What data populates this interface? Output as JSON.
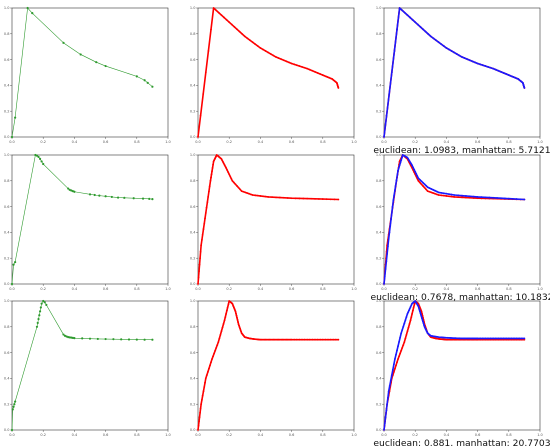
{
  "chart_data": [
    {
      "type": "line",
      "row": 0,
      "col": 0,
      "color": "#2e9a2e",
      "markers": "sparse",
      "xlim": [
        0,
        1
      ],
      "ylim": [
        0,
        1
      ],
      "xticks": [
        "0.0",
        "0.2",
        "0.4",
        "0.6",
        "0.8",
        "1.0"
      ],
      "yticks": [
        "0.0",
        "0.2",
        "0.4",
        "0.6",
        "0.8",
        "1.0"
      ],
      "x": [
        0.0,
        0.02,
        0.1,
        0.13,
        0.33,
        0.44,
        0.54,
        0.6,
        0.8,
        0.85,
        0.87,
        0.9
      ],
      "y": [
        0.0,
        0.15,
        1.0,
        0.96,
        0.73,
        0.64,
        0.58,
        0.55,
        0.47,
        0.44,
        0.42,
        0.39
      ]
    },
    {
      "type": "line",
      "row": 0,
      "col": 1,
      "color": "#ff0000",
      "markers": "dense",
      "xlim": [
        0,
        1
      ],
      "ylim": [
        0,
        1
      ],
      "xticks": [
        "0.0",
        "0.2",
        "0.4",
        "0.6",
        "0.8",
        "1.0"
      ],
      "yticks": [
        "0.0",
        "0.2",
        "0.4",
        "0.6",
        "0.8",
        "1.0"
      ],
      "x": [
        0.0,
        0.1,
        0.2,
        0.3,
        0.4,
        0.5,
        0.6,
        0.7,
        0.8,
        0.86,
        0.89,
        0.9
      ],
      "y": [
        0.0,
        1.0,
        0.89,
        0.78,
        0.69,
        0.62,
        0.57,
        0.53,
        0.48,
        0.45,
        0.42,
        0.38
      ]
    },
    {
      "type": "line",
      "row": 0,
      "col": 2,
      "markers": "dense",
      "xlim": [
        0,
        1
      ],
      "ylim": [
        0,
        1
      ],
      "xticks": [
        "0.0",
        "0.2",
        "0.4",
        "0.6",
        "0.8",
        "1.0"
      ],
      "yticks": [
        "0.0",
        "0.2",
        "0.4",
        "0.6",
        "0.8",
        "1.0"
      ],
      "series": [
        {
          "color": "#ff0000",
          "x": [
            0.0,
            0.1,
            0.2,
            0.3,
            0.4,
            0.5,
            0.6,
            0.7,
            0.8,
            0.86,
            0.89,
            0.9
          ],
          "y": [
            0.0,
            1.0,
            0.89,
            0.78,
            0.69,
            0.62,
            0.57,
            0.53,
            0.48,
            0.45,
            0.42,
            0.38
          ]
        },
        {
          "color": "#1a1aff",
          "x": [
            0.0,
            0.1,
            0.2,
            0.3,
            0.4,
            0.5,
            0.6,
            0.7,
            0.8,
            0.86,
            0.89,
            0.9
          ],
          "y": [
            0.0,
            1.0,
            0.89,
            0.78,
            0.69,
            0.62,
            0.57,
            0.53,
            0.48,
            0.45,
            0.42,
            0.38
          ]
        }
      ],
      "caption": "euclidean: 1.0983, manhattan: 5.7121"
    },
    {
      "type": "line",
      "row": 1,
      "col": 0,
      "color": "#2e9a2e",
      "markers": "sparse",
      "xlim": [
        0,
        1
      ],
      "ylim": [
        0,
        1
      ],
      "xticks": [
        "0.0",
        "0.2",
        "0.4",
        "0.6",
        "0.8",
        "1.0"
      ],
      "yticks": [
        "0.0",
        "0.2",
        "0.4",
        "0.6",
        "0.8",
        "1.0"
      ],
      "x": [
        0.0,
        0.01,
        0.02,
        0.15,
        0.16,
        0.17,
        0.18,
        0.19,
        0.2,
        0.36,
        0.37,
        0.38,
        0.39,
        0.4,
        0.5,
        0.53,
        0.56,
        0.6,
        0.64,
        0.68,
        0.72,
        0.78,
        0.84,
        0.88,
        0.9
      ],
      "y": [
        0.0,
        0.15,
        0.17,
        1.0,
        0.995,
        0.985,
        0.97,
        0.95,
        0.93,
        0.74,
        0.73,
        0.725,
        0.72,
        0.715,
        0.695,
        0.69,
        0.685,
        0.68,
        0.675,
        0.67,
        0.668,
        0.665,
        0.662,
        0.66,
        0.658
      ]
    },
    {
      "type": "line",
      "row": 1,
      "col": 1,
      "color": "#ff0000",
      "markers": "dense",
      "xlim": [
        0,
        1
      ],
      "ylim": [
        0,
        1
      ],
      "xticks": [
        "0.0",
        "0.2",
        "0.4",
        "0.6",
        "0.8",
        "1.0"
      ],
      "yticks": [
        "0.0",
        "0.2",
        "0.4",
        "0.6",
        "0.8",
        "1.0"
      ],
      "x": [
        0.0,
        0.02,
        0.05,
        0.08,
        0.1,
        0.12,
        0.15,
        0.18,
        0.22,
        0.28,
        0.35,
        0.45,
        0.6,
        0.75,
        0.9
      ],
      "y": [
        0.0,
        0.3,
        0.55,
        0.8,
        0.95,
        1.0,
        0.97,
        0.9,
        0.8,
        0.72,
        0.69,
        0.675,
        0.665,
        0.66,
        0.655
      ]
    },
    {
      "type": "line",
      "row": 1,
      "col": 2,
      "markers": "dense",
      "xlim": [
        0,
        1
      ],
      "ylim": [
        0,
        1
      ],
      "xticks": [
        "0.0",
        "0.2",
        "0.4",
        "0.6",
        "0.8",
        "1.0"
      ],
      "yticks": [
        "0.0",
        "0.2",
        "0.4",
        "0.6",
        "0.8",
        "1.0"
      ],
      "series": [
        {
          "color": "#ff0000",
          "x": [
            0.0,
            0.02,
            0.05,
            0.08,
            0.1,
            0.12,
            0.15,
            0.18,
            0.22,
            0.28,
            0.35,
            0.45,
            0.6,
            0.75,
            0.9
          ],
          "y": [
            0.0,
            0.3,
            0.55,
            0.8,
            0.95,
            1.0,
            0.97,
            0.9,
            0.8,
            0.72,
            0.69,
            0.675,
            0.665,
            0.66,
            0.655
          ]
        },
        {
          "color": "#1a1aff",
          "x": [
            0.0,
            0.03,
            0.06,
            0.09,
            0.12,
            0.15,
            0.18,
            0.22,
            0.28,
            0.35,
            0.45,
            0.6,
            0.75,
            0.9
          ],
          "y": [
            0.0,
            0.35,
            0.65,
            0.88,
            1.0,
            0.98,
            0.92,
            0.82,
            0.75,
            0.71,
            0.69,
            0.675,
            0.665,
            0.655
          ]
        }
      ],
      "caption": "euclidean: 0.7678, manhattan: 10.1832"
    },
    {
      "type": "line",
      "row": 2,
      "col": 0,
      "color": "#2e9a2e",
      "markers": "sparse",
      "xlim": [
        0,
        1
      ],
      "ylim": [
        0,
        1
      ],
      "xticks": [
        "0.0",
        "0.2",
        "0.4",
        "0.6",
        "0.8",
        "1.0"
      ],
      "yticks": [
        "0.0",
        "0.2",
        "0.4",
        "0.6",
        "0.8",
        "1.0"
      ],
      "x": [
        0.0,
        0.005,
        0.01,
        0.015,
        0.02,
        0.16,
        0.165,
        0.17,
        0.175,
        0.18,
        0.185,
        0.19,
        0.2,
        0.21,
        0.22,
        0.33,
        0.34,
        0.35,
        0.36,
        0.37,
        0.38,
        0.39,
        0.4,
        0.45,
        0.5,
        0.55,
        0.6,
        0.65,
        0.7,
        0.75,
        0.8,
        0.85,
        0.9
      ],
      "y": [
        0.0,
        0.16,
        0.18,
        0.2,
        0.22,
        0.8,
        0.83,
        0.86,
        0.89,
        0.92,
        0.95,
        0.98,
        1.0,
        0.99,
        0.97,
        0.74,
        0.73,
        0.725,
        0.72,
        0.718,
        0.716,
        0.714,
        0.712,
        0.71,
        0.708,
        0.706,
        0.705,
        0.704,
        0.703,
        0.702,
        0.701,
        0.7,
        0.7
      ]
    },
    {
      "type": "line",
      "row": 2,
      "col": 1,
      "color": "#ff0000",
      "markers": "dense",
      "xlim": [
        0,
        1
      ],
      "ylim": [
        0,
        1
      ],
      "xticks": [
        "0.0",
        "0.2",
        "0.4",
        "0.6",
        "0.8",
        "1.0"
      ],
      "yticks": [
        "0.0",
        "0.2",
        "0.4",
        "0.6",
        "0.8",
        "1.0"
      ],
      "x": [
        0.0,
        0.02,
        0.05,
        0.09,
        0.13,
        0.17,
        0.2,
        0.22,
        0.24,
        0.26,
        0.28,
        0.3,
        0.33,
        0.36,
        0.4,
        0.45,
        0.5,
        0.55,
        0.6,
        0.7,
        0.8,
        0.9
      ],
      "y": [
        0.0,
        0.2,
        0.4,
        0.55,
        0.68,
        0.85,
        1.0,
        0.98,
        0.92,
        0.82,
        0.75,
        0.72,
        0.71,
        0.705,
        0.7,
        0.7,
        0.7,
        0.7,
        0.7,
        0.7,
        0.7,
        0.7
      ]
    },
    {
      "type": "line",
      "row": 2,
      "col": 2,
      "markers": "dense",
      "xlim": [
        0,
        1
      ],
      "ylim": [
        0,
        1
      ],
      "xticks": [
        "0.0",
        "0.2",
        "0.4",
        "0.6",
        "0.8",
        "1.0"
      ],
      "yticks": [
        "0.0",
        "0.2",
        "0.4",
        "0.6",
        "0.8",
        "1.0"
      ],
      "series": [
        {
          "color": "#ff0000",
          "x": [
            0.0,
            0.02,
            0.05,
            0.09,
            0.13,
            0.17,
            0.2,
            0.22,
            0.24,
            0.26,
            0.28,
            0.3,
            0.33,
            0.36,
            0.4,
            0.45,
            0.5,
            0.55,
            0.6,
            0.7,
            0.8,
            0.9
          ],
          "y": [
            0.0,
            0.2,
            0.4,
            0.55,
            0.68,
            0.85,
            1.0,
            0.98,
            0.92,
            0.82,
            0.75,
            0.72,
            0.71,
            0.705,
            0.7,
            0.7,
            0.7,
            0.7,
            0.7,
            0.7,
            0.7,
            0.7
          ]
        },
        {
          "color": "#1a1aff",
          "x": [
            0.0,
            0.03,
            0.07,
            0.11,
            0.15,
            0.18,
            0.2,
            0.22,
            0.24,
            0.26,
            0.28,
            0.3,
            0.35,
            0.4,
            0.45,
            0.5,
            0.55,
            0.6,
            0.7,
            0.8,
            0.9
          ],
          "y": [
            0.0,
            0.3,
            0.55,
            0.75,
            0.9,
            0.98,
            1.0,
            0.96,
            0.88,
            0.8,
            0.75,
            0.73,
            0.72,
            0.715,
            0.712,
            0.71,
            0.71,
            0.71,
            0.71,
            0.71,
            0.71
          ]
        }
      ],
      "caption": "euclidean: 0.881, manhattan: 20.7703"
    }
  ]
}
